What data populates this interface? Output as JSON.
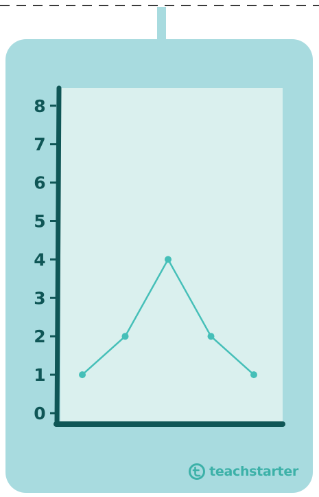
{
  "brand": {
    "name": "teachstarter",
    "icon": "teachstarter-logo-icon"
  },
  "colors": {
    "card": "#a8dbdf",
    "plot_bg": "#daf0ee",
    "axis": "#0f5656",
    "line": "#45bfb8",
    "brand": "#3cb1a8",
    "cutline": "#3a3a3a"
  },
  "chart_data": {
    "type": "line",
    "title": "",
    "xlabel": "",
    "ylabel": "",
    "y_ticks": [
      "0",
      "1",
      "2",
      "3",
      "4",
      "5",
      "6",
      "7",
      "8"
    ],
    "ylim": [
      0,
      8
    ],
    "x": [
      1,
      2,
      3,
      4,
      5
    ],
    "series": [
      {
        "values": [
          1,
          2,
          4,
          2,
          1
        ]
      }
    ],
    "grid": false,
    "legend": "none"
  }
}
